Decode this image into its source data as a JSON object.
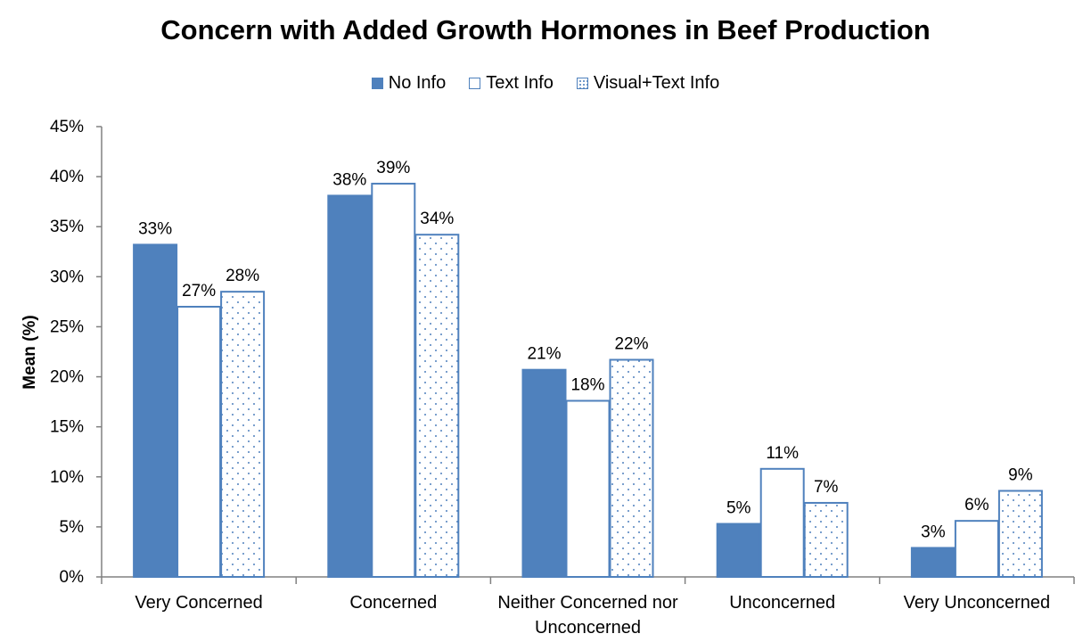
{
  "chart_data": {
    "type": "bar",
    "title": "Concern with Added Growth Hormones in Beef Production",
    "xlabel": "",
    "ylabel": "Mean (%)",
    "ylim": [
      0,
      45
    ],
    "yticks": [
      "0%",
      "5%",
      "10%",
      "15%",
      "20%",
      "25%",
      "30%",
      "35%",
      "40%",
      "45%"
    ],
    "grid": false,
    "legend_position": "top",
    "categories": [
      [
        "Very Concerned"
      ],
      [
        "Concerned"
      ],
      [
        "Neither Concerned nor",
        "Unconcerned"
      ],
      [
        "Unconcerned"
      ],
      [
        "Very Unconcerned"
      ]
    ],
    "series": [
      {
        "name": "No Info",
        "style": "solid",
        "values": [
          33.2,
          38.1,
          20.7,
          5.3,
          2.9
        ],
        "labels": [
          "33%",
          "38%",
          "21%",
          "5%",
          "3%"
        ]
      },
      {
        "name": "Text Info",
        "style": "outline",
        "values": [
          27.0,
          39.3,
          17.6,
          10.8,
          5.6
        ],
        "labels": [
          "27%",
          "39%",
          "18%",
          "11%",
          "6%"
        ]
      },
      {
        "name": "Visual+Text Info",
        "style": "dotted",
        "values": [
          28.5,
          34.2,
          21.7,
          7.4,
          8.6
        ],
        "labels": [
          "28%",
          "34%",
          "22%",
          "7%",
          "9%"
        ]
      }
    ],
    "colors": {
      "accent": "#4f81bd",
      "axis": "#808080",
      "text": "#000000"
    }
  }
}
